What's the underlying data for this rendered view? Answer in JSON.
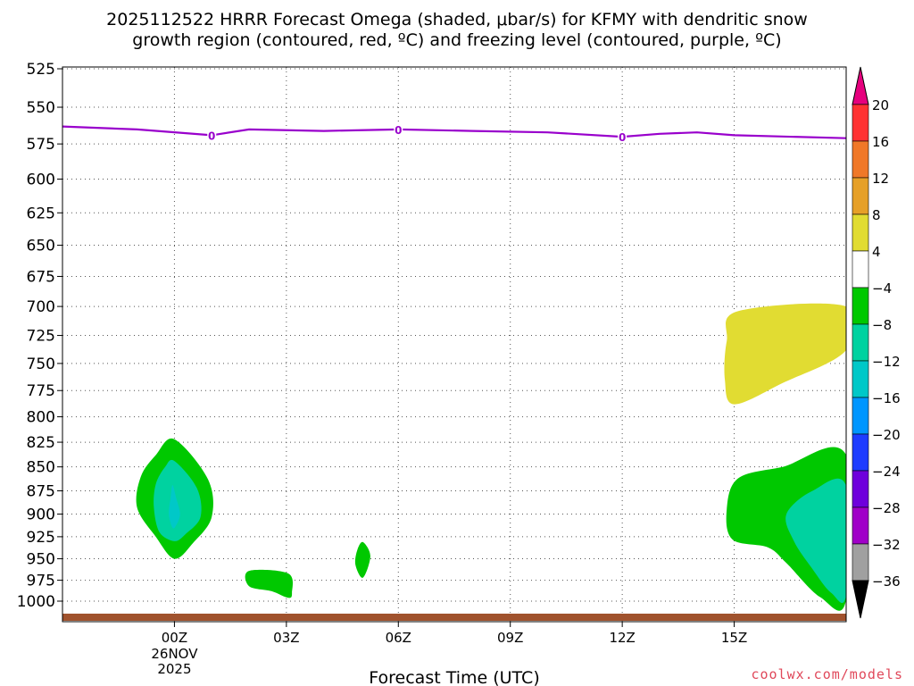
{
  "chart_data": {
    "type": "contour",
    "title_line1": "2025112522 HRRR Forecast Omega (shaded, μbar/s) for KFMY with dendritic snow",
    "title_line2": "growth region (contoured, red, ºC) and freezing level (contoured, purple, ºC)",
    "xlabel": "Forecast Time (UTC)",
    "ylabel": "",
    "y_scale": "log-pressure",
    "ylim": [
      1000,
      525
    ],
    "y_ticks": [
      525,
      550,
      575,
      600,
      625,
      650,
      675,
      700,
      725,
      750,
      775,
      800,
      825,
      850,
      875,
      900,
      925,
      950,
      975,
      1000
    ],
    "x_range_hours": [
      -3,
      18
    ],
    "x_ticks": [
      {
        "hour": 0,
        "label": "00Z",
        "sub1": "26NOV",
        "sub2": "2025"
      },
      {
        "hour": 3,
        "label": "03Z",
        "sub1": "",
        "sub2": ""
      },
      {
        "hour": 6,
        "label": "06Z",
        "sub1": "",
        "sub2": ""
      },
      {
        "hour": 9,
        "label": "09Z",
        "sub1": "",
        "sub2": ""
      },
      {
        "hour": 12,
        "label": "12Z",
        "sub1": "",
        "sub2": ""
      },
      {
        "hour": 15,
        "label": "15Z",
        "sub1": "",
        "sub2": ""
      }
    ],
    "grid": "dotted",
    "freezing_level": {
      "label": "0",
      "color": "#9900cc",
      "points": [
        [
          -3,
          563
        ],
        [
          -1,
          565
        ],
        [
          1,
          569
        ],
        [
          2,
          565
        ],
        [
          4,
          566
        ],
        [
          6,
          565
        ],
        [
          8,
          566
        ],
        [
          10,
          567
        ],
        [
          12,
          570
        ],
        [
          13,
          568
        ],
        [
          14,
          567
        ],
        [
          15,
          569
        ],
        [
          18,
          571
        ]
      ],
      "label_hours": [
        1,
        6,
        12
      ]
    },
    "omega_regions": [
      {
        "name": "green-0000Z",
        "value_bin": "-8 to -4",
        "color": "#00c800",
        "points": [
          [
            0,
            822
          ],
          [
            0.9,
            863
          ],
          [
            1.0,
            903
          ],
          [
            0.5,
            932
          ],
          [
            0,
            950
          ],
          [
            -0.5,
            925
          ],
          [
            -1.0,
            893
          ],
          [
            -0.9,
            860
          ],
          [
            -0.5,
            838
          ]
        ]
      },
      {
        "name": "teal-0000Z",
        "value_bin": "-12 to -8",
        "color": "#00d2a0",
        "points": [
          [
            0,
            844
          ],
          [
            0.6,
            872
          ],
          [
            0.7,
            903
          ],
          [
            0.3,
            922
          ],
          [
            0,
            930
          ],
          [
            -0.4,
            920
          ],
          [
            -0.55,
            893
          ],
          [
            -0.5,
            868
          ],
          [
            -0.25,
            850
          ]
        ]
      },
      {
        "name": "cyan-0000Z",
        "value_bin": "-16 to -12",
        "color": "#00c8c8",
        "points": [
          [
            -0.05,
            869
          ],
          [
            0.05,
            883
          ],
          [
            0.15,
            900
          ],
          [
            0.05,
            912
          ],
          [
            -0.05,
            915
          ],
          [
            -0.15,
            900
          ],
          [
            -0.1,
            882
          ]
        ]
      },
      {
        "name": "green-0230Z",
        "value_bin": "-8 to -4",
        "color": "#00c800",
        "points": [
          [
            2.0,
            964
          ],
          [
            3.05,
            967
          ],
          [
            3.15,
            990
          ],
          [
            3.05,
            996
          ],
          [
            2.6,
            988
          ],
          [
            2.0,
            982
          ]
        ]
      },
      {
        "name": "green-0500Z",
        "value_bin": "-8 to -4",
        "color": "#00c800",
        "points": [
          [
            5.05,
            931
          ],
          [
            5.25,
            947
          ],
          [
            5.05,
            972
          ],
          [
            4.85,
            957
          ],
          [
            4.9,
            940
          ]
        ]
      },
      {
        "name": "yellow-1530Z",
        "value_bin": "4 to 8",
        "color": "#e1dc32",
        "points": [
          [
            15.1,
            704
          ],
          [
            18,
            700
          ],
          [
            18,
            738
          ],
          [
            16.3,
            768
          ],
          [
            15.0,
            788
          ],
          [
            14.75,
            765
          ],
          [
            14.8,
            730
          ]
        ]
      },
      {
        "name": "green-1700Z",
        "value_bin": "-8 to -4",
        "color": "#00c800",
        "points": [
          [
            16.3,
            850
          ],
          [
            18,
            838
          ],
          [
            18,
            998
          ],
          [
            17.3,
            995
          ],
          [
            16.4,
            955
          ],
          [
            15.9,
            937
          ],
          [
            14.95,
            928
          ],
          [
            14.8,
            895
          ],
          [
            15.1,
            862
          ]
        ]
      },
      {
        "name": "teal-1700Z",
        "value_bin": "-12 to -8",
        "color": "#00d2a0",
        "points": [
          [
            17.1,
            875
          ],
          [
            18,
            870
          ],
          [
            18,
            992
          ],
          [
            17.6,
            990
          ],
          [
            17.1,
            962
          ],
          [
            16.6,
            930
          ],
          [
            16.4,
            900
          ]
        ]
      }
    ],
    "terrain": {
      "color": "#a0522d",
      "label": ""
    },
    "colorbar": {
      "labels": [
        "20",
        "16",
        "12",
        "8",
        "4",
        "−4",
        "−8",
        "−12",
        "−16",
        "−20",
        "−24",
        "−28",
        "−32",
        "−36"
      ],
      "top_arrow_color": "#e6007e",
      "bottom_arrow_color": "#000000",
      "bins": [
        {
          "from": 20,
          "to": 16,
          "color": "#ff3232"
        },
        {
          "from": 16,
          "to": 12,
          "color": "#f07828"
        },
        {
          "from": 12,
          "to": 8,
          "color": "#e6a028"
        },
        {
          "from": 8,
          "to": 4,
          "color": "#e1dc32"
        },
        {
          "from": 4,
          "to": -4,
          "color": "#ffffff"
        },
        {
          "from": -4,
          "to": -8,
          "color": "#00c800"
        },
        {
          "from": -8,
          "to": -12,
          "color": "#00d2a0"
        },
        {
          "from": -12,
          "to": -16,
          "color": "#00c8c8"
        },
        {
          "from": -16,
          "to": -20,
          "color": "#0096ff"
        },
        {
          "from": -20,
          "to": -24,
          "color": "#1e3cff"
        },
        {
          "from": -24,
          "to": -28,
          "color": "#6e00dc"
        },
        {
          "from": -28,
          "to": -32,
          "color": "#a000c8"
        },
        {
          "from": -32,
          "to": -36,
          "color": "#a0a0a0"
        }
      ]
    }
  },
  "credit": "coolwx.com/models"
}
